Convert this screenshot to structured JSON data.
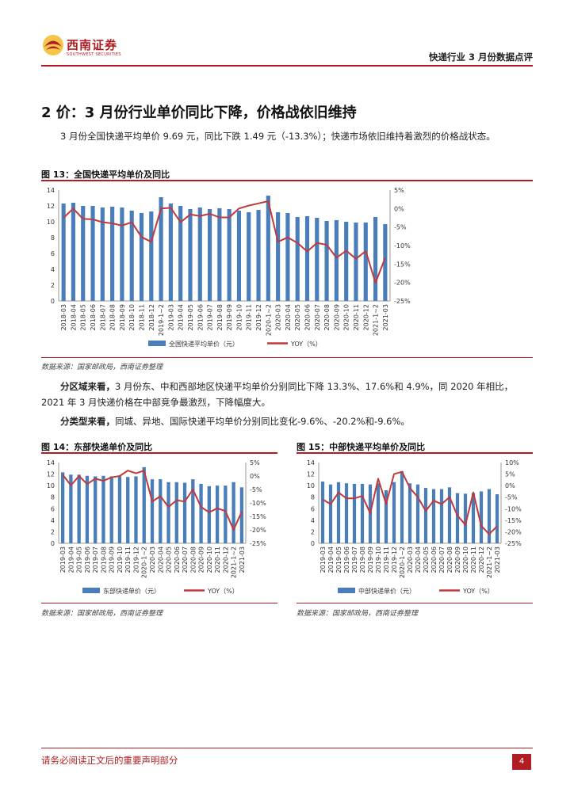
{
  "header": {
    "logo_name": "西南证券",
    "logo_en": "SOUTHWEST SECURITIES",
    "report_title": "快递行业 3 月份数据点评"
  },
  "section": {
    "title": "2 价：3 月份行业单价同比下降，价格战依旧维持",
    "para1": "3 月份全国快递平均单价 9.69 元，同比下跌 1.49 元（-13.3%）；快递市场依旧维持着激烈的价格战状态。",
    "para2_lead": "分区域来看，",
    "para2_body": "3 月份东、中和西部地区快递平均单价分别同比下降 13.3%、17.6%和 4.9%，同 2020 年相比，2021 年 3 月快递价格在中部竞争最激烈，下降幅度大。",
    "para3_lead": "分类型来看，",
    "para3_body": "同城、异地、国际快递平均单价分别同比变化-9.6%、-20.2%和-9.6%。"
  },
  "figures": {
    "fig13_title": "图 13：全国快递平均单价及同比",
    "fig14_title": "图 14：东部快递单价及同比",
    "fig15_title": "图 15：中部快递平均单价及同比",
    "source": "数据来源：国家邮政局，西南证券整理"
  },
  "footer": {
    "note": "请务必阅读正文后的重要声明部分",
    "page": "4"
  },
  "colors": {
    "bar": "#4a7ebb",
    "line": "#c0393b",
    "accent": "#b01e24"
  },
  "chart_data": [
    {
      "type": "bar",
      "id": "fig13",
      "title": "全国快递平均单价及同比",
      "categories": [
        "2018-03",
        "2018-04",
        "2018-05",
        "2018-06",
        "2018-07",
        "2018-08",
        "2018-09",
        "2018-10",
        "2018-11",
        "2018-12",
        "2019-1~2",
        "2019-03",
        "2019-04",
        "2019-05",
        "2019-06",
        "2019-07",
        "2019-08",
        "2019-09",
        "2019-10",
        "2019-11",
        "2019-12",
        "2020-1~2",
        "2020-03",
        "2020-04",
        "2020-05",
        "2020-06",
        "2020-07",
        "2020-08",
        "2020-09",
        "2020-10",
        "2020-11",
        "2020-12",
        "2021-1~2",
        "2021-03"
      ],
      "series": [
        {
          "name": "全国快递平均单价（元）",
          "axis": "left",
          "kind": "bar",
          "values": [
            12.3,
            12.4,
            12.0,
            12.0,
            11.8,
            11.9,
            11.8,
            11.4,
            11.1,
            11.3,
            13.1,
            12.3,
            12.0,
            11.6,
            11.8,
            11.6,
            11.7,
            11.6,
            11.4,
            11.2,
            11.5,
            13.3,
            11.2,
            11.1,
            10.6,
            10.7,
            10.5,
            10.1,
            10.2,
            10.0,
            9.9,
            9.9,
            10.6,
            9.7
          ]
        },
        {
          "name": "YOY（%）",
          "axis": "right",
          "kind": "line",
          "values": [
            -2.5,
            0.0,
            -2.8,
            -2.9,
            -3.7,
            -4.0,
            -4.6,
            -3.7,
            -7.7,
            -9.0,
            0.0,
            0.2,
            -3.7,
            -1.6,
            -2.0,
            -1.4,
            -2.4,
            -2.4,
            0.0,
            0.8,
            1.4,
            2.0,
            -9.0,
            -7.8,
            -9.3,
            -11.6,
            -9.3,
            -9.8,
            -13.3,
            -11.4,
            -13.6,
            -11.5,
            -20.1,
            -13.3
          ]
        }
      ],
      "ylim_left": [
        0,
        14
      ],
      "yticks_left": [
        "0",
        "2",
        "4",
        "6",
        "8",
        "10",
        "12",
        "14"
      ],
      "ylim_right": [
        -25,
        5
      ],
      "yticks_right": [
        "-25%",
        "-20%",
        "-15%",
        "-10%",
        "-5%",
        "0%",
        "5%"
      ],
      "legend": [
        "全国快递平均单价（元）",
        "YOY（%）"
      ]
    },
    {
      "type": "bar",
      "id": "fig14",
      "title": "东部快递单价及同比",
      "categories": [
        "2019-03",
        "2019-04",
        "2019-05",
        "2019-06",
        "2019-07",
        "2019-08",
        "2019-09",
        "2019-10",
        "2019-11",
        "2019-12",
        "2020-1~2",
        "2020-03",
        "2020-04",
        "2020-05",
        "2020-06",
        "2020-07",
        "2020-08",
        "2020-09",
        "2020-10",
        "2020-11",
        "2020-12",
        "2021-1~2",
        "2021-03"
      ],
      "series": [
        {
          "name": "东部快递单价（元）",
          "axis": "left",
          "kind": "bar",
          "values": [
            12.3,
            11.9,
            11.9,
            11.7,
            11.6,
            11.7,
            11.6,
            11.6,
            11.5,
            11.6,
            13.2,
            11.1,
            11.1,
            10.6,
            10.6,
            10.5,
            11.1,
            10.3,
            9.9,
            10.0,
            10.0,
            10.6,
            9.7
          ]
        },
        {
          "name": "YOY（%）",
          "axis": "right",
          "kind": "line",
          "values": [
            0.5,
            -3.5,
            0.0,
            -3.0,
            -1.0,
            -1.8,
            -0.5,
            0.0,
            2.0,
            1.0,
            2.0,
            -9.5,
            -7.5,
            -11.5,
            -9.0,
            -9.5,
            -5.0,
            -11.5,
            -13.5,
            -12.0,
            -13.0,
            -20.0,
            -13.3
          ]
        }
      ],
      "ylim_left": [
        0,
        14
      ],
      "yticks_left": [
        "0",
        "2",
        "4",
        "6",
        "8",
        "10",
        "12",
        "14"
      ],
      "ylim_right": [
        -25,
        5
      ],
      "yticks_right": [
        "-25%",
        "-20%",
        "-15%",
        "-10%",
        "-5%",
        "0%",
        "5%"
      ],
      "legend": [
        "东部快递单价（元）",
        "YOY（%）"
      ]
    },
    {
      "type": "bar",
      "id": "fig15",
      "title": "中部快递平均单价及同比",
      "categories": [
        "2019-03",
        "2019-04",
        "2019-05",
        "2019-06",
        "2019-07",
        "2019-08",
        "2019-09",
        "2019-10",
        "2019-11",
        "2019-12",
        "2020-1~2",
        "2020-03",
        "2020-04",
        "2020-05",
        "2020-06",
        "2020-07",
        "2020-08",
        "2020-09",
        "2020-10",
        "2020-11",
        "2020-12",
        "2021-1~2",
        "2021-03"
      ],
      "series": [
        {
          "name": "中部快递单价（元）",
          "axis": "left",
          "kind": "bar",
          "values": [
            10.7,
            10.2,
            10.6,
            10.4,
            10.3,
            10.3,
            10.2,
            10.4,
            9.2,
            10.6,
            12.5,
            10.4,
            10.2,
            9.6,
            9.4,
            9.4,
            9.7,
            8.7,
            8.6,
            8.7,
            9.0,
            9.4,
            8.5
          ]
        },
        {
          "name": "YOY（%）",
          "axis": "right",
          "kind": "line",
          "values": [
            -6.0,
            -8.0,
            -3.0,
            -5.5,
            -5.5,
            -4.5,
            -12.0,
            3.0,
            -8.0,
            5.0,
            6.0,
            -1.0,
            -5.0,
            -11.0,
            -6.5,
            -8.0,
            -5.0,
            -13.0,
            -17.0,
            -3.0,
            -17.5,
            -21.0,
            -17.6
          ]
        }
      ],
      "ylim_left": [
        0,
        14
      ],
      "yticks_left": [
        "0",
        "2",
        "4",
        "6",
        "8",
        "10",
        "12",
        "14"
      ],
      "ylim_right": [
        -25,
        10
      ],
      "yticks_right": [
        "-25%",
        "-20%",
        "-15%",
        "-10%",
        "-5%",
        "0%",
        "5%",
        "10%"
      ],
      "legend": [
        "中部快递单价（元）",
        "YOY（%）"
      ]
    }
  ]
}
